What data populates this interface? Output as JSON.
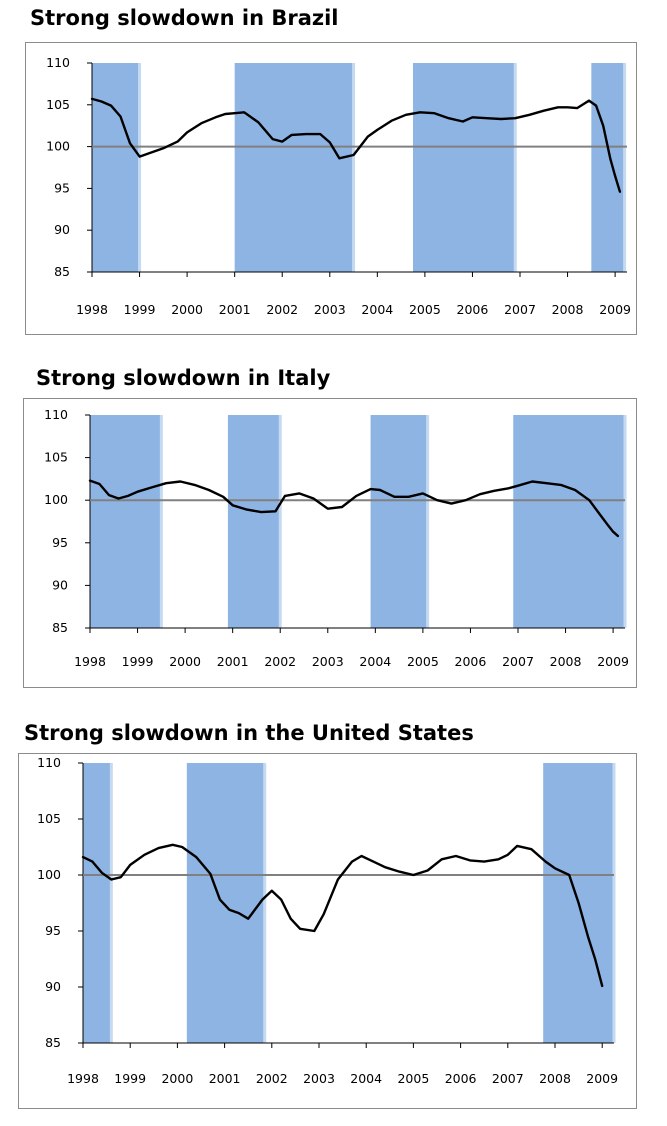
{
  "chart_data": [
    {
      "type": "line",
      "title": "Strong slowdown in Brazil",
      "ylim": [
        85,
        110
      ],
      "yticks": [
        "110",
        "105",
        "100",
        "95",
        "90",
        "85"
      ],
      "xticks": [
        "1998",
        "1999",
        "2000",
        "2001",
        "2002",
        "2003",
        "2004",
        "2005",
        "2006",
        "2007",
        "2008",
        "2009"
      ],
      "xlim": [
        1998.0,
        2009.25
      ],
      "reference_line": 100,
      "shaded_periods": [
        [
          1998.0,
          1999.0
        ],
        [
          2001.0,
          2003.5
        ],
        [
          2004.75,
          2006.9
        ],
        [
          2008.5,
          2009.2
        ]
      ],
      "colors": {
        "shade": "#8db4e2",
        "shade_edge": "#c5d9f1",
        "line": "#000000",
        "reference": "#808080"
      },
      "series": [
        {
          "x": [
            1998.0,
            1998.2,
            1998.4,
            1998.6,
            1998.8,
            1999.0,
            1999.2,
            1999.5,
            1999.8,
            2000.0,
            2000.3,
            2000.6,
            2000.8,
            2001.0,
            2001.2,
            2001.5,
            2001.8,
            2002.0,
            2002.2,
            2002.5,
            2002.8,
            2003.0,
            2003.2,
            2003.5,
            2003.8,
            2004.0,
            2004.3,
            2004.6,
            2004.9,
            2005.2,
            2005.5,
            2005.8,
            2006.0,
            2006.3,
            2006.6,
            2006.9,
            2007.2,
            2007.5,
            2007.8,
            2008.0,
            2008.2,
            2008.45,
            2008.6,
            2008.75,
            2008.9,
            2009.0,
            2009.1
          ],
          "y": [
            105.7,
            105.4,
            104.9,
            103.6,
            100.4,
            98.8,
            99.2,
            99.8,
            100.6,
            101.7,
            102.8,
            103.5,
            103.9,
            104.0,
            104.1,
            102.9,
            100.9,
            100.6,
            101.4,
            101.5,
            101.5,
            100.5,
            98.6,
            99.0,
            101.2,
            102.0,
            103.1,
            103.8,
            104.1,
            104.0,
            103.4,
            103.0,
            103.5,
            103.4,
            103.3,
            103.4,
            103.8,
            104.3,
            104.7,
            104.7,
            104.6,
            105.5,
            104.9,
            102.5,
            98.5,
            96.5,
            94.6
          ]
        }
      ]
    },
    {
      "type": "line",
      "title": "Strong slowdown in Italy",
      "ylim": [
        85,
        110
      ],
      "yticks": [
        "110",
        "105",
        "100",
        "95",
        "90",
        "85"
      ],
      "xticks": [
        "1998",
        "1999",
        "2000",
        "2001",
        "2002",
        "2003",
        "2004",
        "2005",
        "2006",
        "2007",
        "2008",
        "2009"
      ],
      "xlim": [
        1998.0,
        2009.25
      ],
      "reference_line": 100,
      "shaded_periods": [
        [
          1998.0,
          1999.5
        ],
        [
          2000.9,
          2002.0
        ],
        [
          2003.9,
          2005.1
        ],
        [
          2006.9,
          2009.25
        ]
      ],
      "colors": {
        "shade": "#8db4e2",
        "shade_edge": "#c5d9f1",
        "line": "#000000",
        "reference": "#808080"
      },
      "series": [
        {
          "x": [
            1998.0,
            1998.2,
            1998.4,
            1998.6,
            1998.8,
            1999.0,
            1999.3,
            1999.6,
            1999.9,
            2000.2,
            2000.5,
            2000.8,
            2001.0,
            2001.3,
            2001.6,
            2001.9,
            2002.1,
            2002.4,
            2002.7,
            2003.0,
            2003.3,
            2003.6,
            2003.9,
            2004.1,
            2004.4,
            2004.7,
            2005.0,
            2005.3,
            2005.6,
            2005.9,
            2006.2,
            2006.5,
            2006.8,
            2007.0,
            2007.3,
            2007.6,
            2007.9,
            2008.2,
            2008.5,
            2008.7,
            2008.9,
            2009.0,
            2009.1
          ],
          "y": [
            102.3,
            101.9,
            100.6,
            100.2,
            100.5,
            101.0,
            101.5,
            102.0,
            102.2,
            101.8,
            101.2,
            100.4,
            99.4,
            98.9,
            98.6,
            98.7,
            100.5,
            100.8,
            100.2,
            99.0,
            99.2,
            100.5,
            101.3,
            101.2,
            100.4,
            100.4,
            100.8,
            100.0,
            99.6,
            100.0,
            100.7,
            101.1,
            101.4,
            101.7,
            102.2,
            102.0,
            101.8,
            101.2,
            100.0,
            98.5,
            97.0,
            96.3,
            95.8
          ]
        }
      ]
    },
    {
      "type": "line",
      "title": "Strong slowdown in the United States",
      "ylim": [
        85,
        110
      ],
      "yticks": [
        "110",
        "105",
        "100",
        "95",
        "90",
        "85"
      ],
      "xticks": [
        "1998",
        "1999",
        "2000",
        "2001",
        "2002",
        "2003",
        "2004",
        "2005",
        "2006",
        "2007",
        "2008",
        "2009"
      ],
      "xlim": [
        1998.0,
        2009.25
      ],
      "reference_line": 100,
      "shaded_periods": [
        [
          1998.0,
          1998.6
        ],
        [
          2000.2,
          2001.85
        ],
        [
          2007.75,
          2009.25
        ]
      ],
      "colors": {
        "shade": "#8db4e2",
        "shade_edge": "#c5d9f1",
        "line": "#000000",
        "reference": "#808080"
      },
      "series": [
        {
          "x": [
            1998.0,
            1998.2,
            1998.4,
            1998.6,
            1998.8,
            1999.0,
            1999.3,
            1999.6,
            1999.9,
            2000.1,
            2000.4,
            2000.7,
            2000.9,
            2001.1,
            2001.3,
            2001.5,
            2001.8,
            2002.0,
            2002.2,
            2002.4,
            2002.6,
            2002.9,
            2003.1,
            2003.4,
            2003.7,
            2003.9,
            2004.1,
            2004.4,
            2004.7,
            2005.0,
            2005.3,
            2005.6,
            2005.9,
            2006.2,
            2006.5,
            2006.8,
            2007.0,
            2007.2,
            2007.5,
            2007.8,
            2008.0,
            2008.3,
            2008.5,
            2008.7,
            2008.85,
            2009.0
          ],
          "y": [
            101.6,
            101.2,
            100.2,
            99.6,
            99.8,
            100.9,
            101.8,
            102.4,
            102.7,
            102.5,
            101.6,
            100.1,
            97.8,
            96.9,
            96.6,
            96.1,
            97.8,
            98.6,
            97.8,
            96.1,
            95.2,
            95.0,
            96.5,
            99.6,
            101.2,
            101.7,
            101.3,
            100.7,
            100.3,
            100.0,
            100.4,
            101.4,
            101.7,
            101.3,
            101.2,
            101.4,
            101.8,
            102.6,
            102.3,
            101.2,
            100.6,
            100.0,
            97.5,
            94.5,
            92.5,
            90.1
          ]
        }
      ]
    }
  ]
}
